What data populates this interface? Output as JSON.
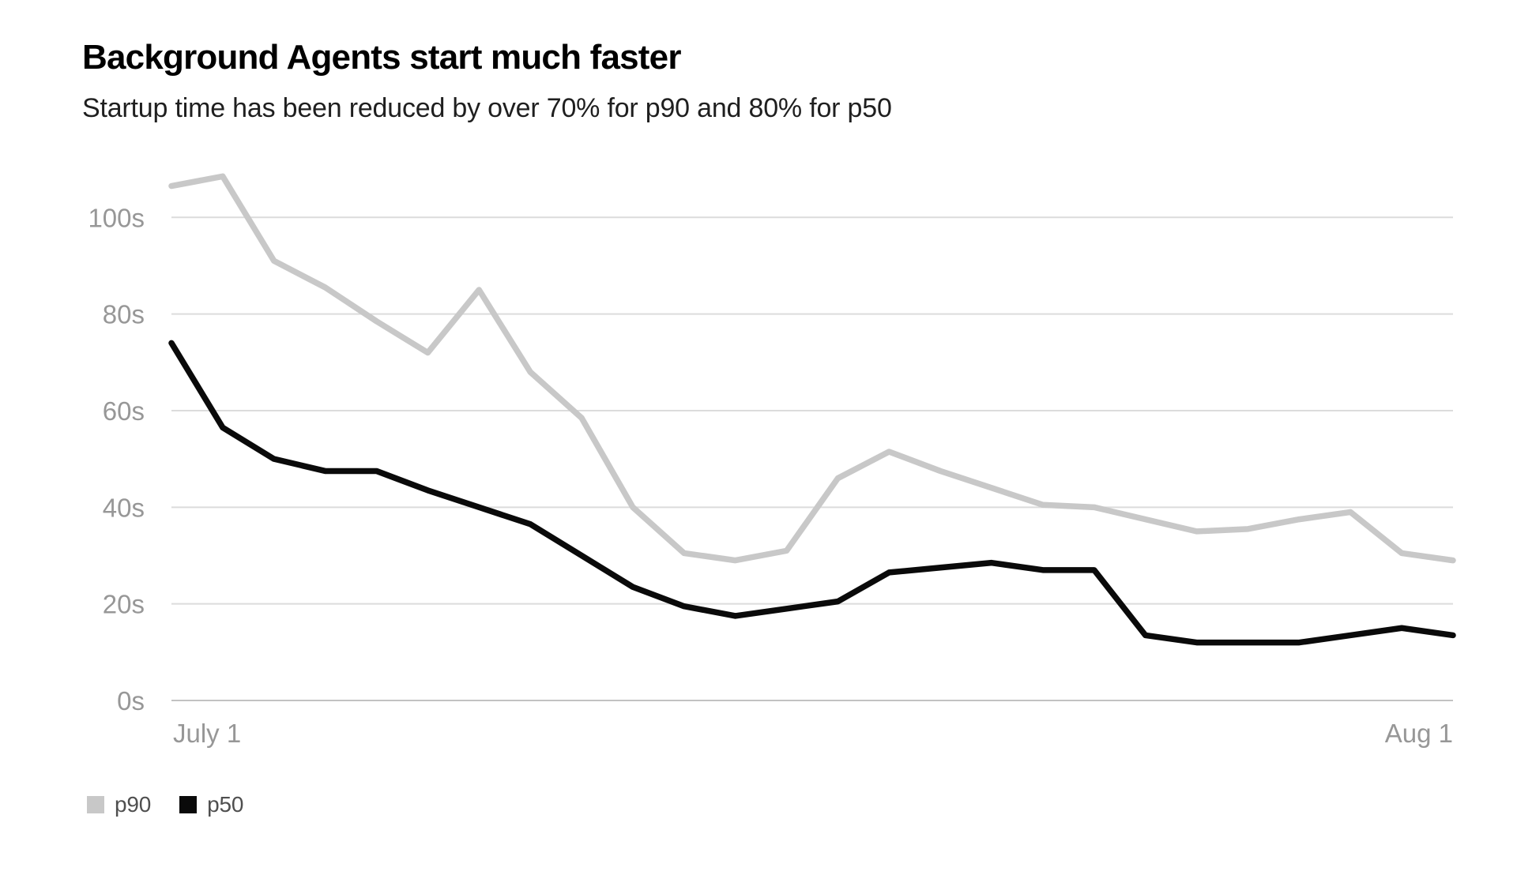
{
  "header": {
    "title": "Background Agents start much faster",
    "subtitle": "Startup time has been reduced by over 70% for p90 and 80% for p50"
  },
  "chart_data": {
    "type": "line",
    "title": "Background Agents start much faster",
    "subtitle": "Startup time has been reduced by over 70% for p90 and 80% for p50",
    "unit": "seconds",
    "grid": true,
    "legend_position": "bottom-left",
    "ylim": [
      0,
      112
    ],
    "y_ticks": [
      {
        "value": 0,
        "label": "0s"
      },
      {
        "value": 20,
        "label": "20s"
      },
      {
        "value": 40,
        "label": "40s"
      },
      {
        "value": 60,
        "label": "60s"
      },
      {
        "value": 80,
        "label": "80s"
      },
      {
        "value": 100,
        "label": "100s"
      }
    ],
    "x_ticks": [
      {
        "label": "July 1",
        "align": "start"
      },
      {
        "label": "Aug 1",
        "align": "end"
      }
    ],
    "x_range_note": "26 evenly spaced samples from July 1 to Aug 1",
    "series": [
      {
        "name": "p90",
        "color": "#c8c8c8",
        "values": [
          106.5,
          108.5,
          91,
          85.5,
          78.5,
          72,
          85,
          68,
          58.5,
          40,
          30.5,
          29,
          31,
          46,
          51.5,
          47.5,
          44,
          40.5,
          40,
          37.5,
          35,
          35.5,
          37.5,
          39,
          30.5,
          29
        ]
      },
      {
        "name": "p50",
        "color": "#0a0a0a",
        "values": [
          74,
          56.5,
          50,
          47.5,
          47.5,
          43.5,
          40,
          36.5,
          30,
          23.5,
          19.5,
          17.5,
          19,
          20.5,
          26.5,
          27.5,
          28.5,
          27,
          27,
          13.5,
          12,
          12,
          12,
          13.5,
          15,
          13.5
        ]
      }
    ]
  },
  "colors": {
    "background": "#ffffff",
    "title": "#000000",
    "subtitle": "#1f1f1f",
    "grid": "#dcdcdc",
    "axis_line": "#c2c2c2",
    "tick_label": "#979797",
    "legend_label": "#4f4f4f"
  }
}
